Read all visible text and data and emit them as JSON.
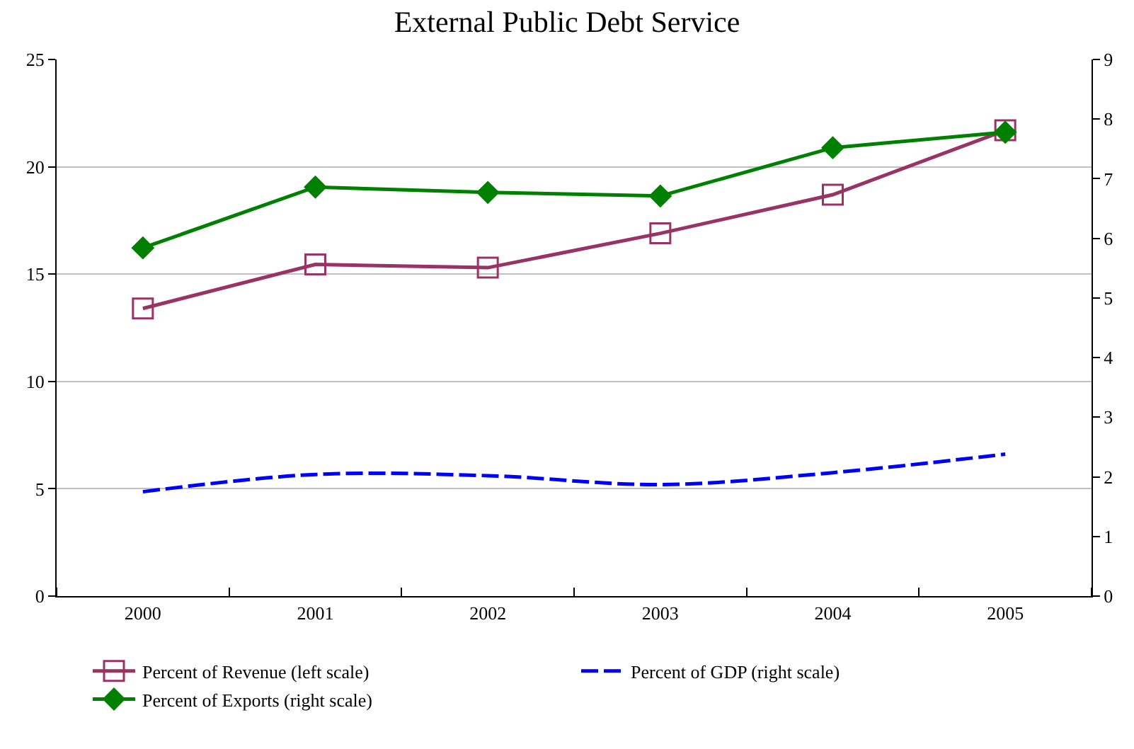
{
  "chart_data": {
    "type": "line",
    "title": "External Public Debt Service",
    "categories": [
      "2000",
      "2001",
      "2002",
      "2003",
      "2004",
      "2005"
    ],
    "series": [
      {
        "name": "Percent of Revenue (left scale)",
        "color": "#993366",
        "marker": "square",
        "line_style": "solid",
        "values": [
          13.4,
          15.45,
          15.3,
          16.9,
          18.7,
          21.7
        ]
      },
      {
        "name": "Percent of GDP (right scale)",
        "color": "#0000ff",
        "marker": "none",
        "line_style": "dashed",
        "axis": "y2",
        "values": [
          1.75,
          2.04,
          2.02,
          1.87,
          2.07,
          2.38
        ]
      },
      {
        "name": "Percent of Exports (right scale)",
        "color": "#008000",
        "marker": "diamond",
        "line_style": "solid",
        "axis": "y2",
        "values": [
          5.84,
          6.86,
          6.77,
          6.71,
          7.52,
          7.78
        ]
      }
    ],
    "ylim": [
      0,
      25
    ],
    "yticks": [
      0,
      5,
      10,
      15,
      20,
      25
    ],
    "y2lim": [
      0,
      9
    ],
    "y2ticks": [
      0,
      1,
      2,
      3,
      4,
      5,
      6,
      7,
      8,
      9
    ],
    "grid": "y",
    "legend": "bottom"
  }
}
